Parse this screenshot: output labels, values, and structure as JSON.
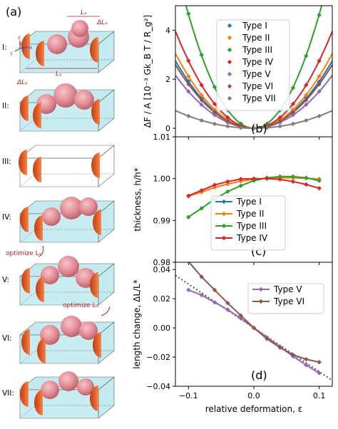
{
  "colors": {
    "Type I": "#1f77b4",
    "Type II": "#ff7f0e",
    "Type III": "#2ca02c",
    "Type IV": "#d62728",
    "Type V": "#9467bd",
    "Type VI": "#8c564b",
    "Type VII": "#7f7f7f",
    "box_fill": "#bfe9ef",
    "sphere": "#e88d96",
    "half_sphere": "#e0581f",
    "annotation": "#b22222"
  },
  "left_panel": {
    "letter": "(a)",
    "rows": [
      "I:",
      "II:",
      "III:",
      "IV:",
      "V:",
      "VI:",
      "VII:"
    ],
    "dim_labels": {
      "lx": "Lₓ",
      "dlx": "ΔLₓ",
      "ly": "Lᵧ",
      "dly": "ΔLᵧ"
    },
    "axis_triad": {
      "x": "x",
      "y": "y",
      "z": "z"
    },
    "optimize_y": "optimize Lᵧ",
    "optimize_x": "optimize Lₓ",
    "icons": [
      "box-icon"
    ]
  },
  "chart_data": [
    {
      "panel": "(b)",
      "type": "scatter",
      "ylabel": "ΔF / A [10⁻³ Gk_B T / R_g²]",
      "xlim": [
        -0.12,
        0.12
      ],
      "ylim": [
        -0.35,
        5.0
      ],
      "yticks": [
        0,
        2,
        4
      ],
      "ytick_labels": [
        "0",
        "2",
        "4"
      ],
      "legend_position": "upper-right",
      "x": [
        -0.1,
        -0.08,
        -0.06,
        -0.04,
        -0.02,
        0.0,
        0.02,
        0.04,
        0.06,
        0.08,
        0.1
      ],
      "series": [
        {
          "name": "Type I",
          "y": [
            1.92,
            1.21,
            0.69,
            0.32,
            0.09,
            0.0,
            0.08,
            0.33,
            0.72,
            1.25,
            1.9
          ]
        },
        {
          "name": "Type II",
          "y": [
            2.12,
            1.35,
            0.76,
            0.34,
            0.09,
            0.0,
            0.08,
            0.34,
            0.76,
            1.35,
            2.12
          ]
        },
        {
          "name": "Type III",
          "y": [
            4.67,
            2.99,
            1.68,
            0.75,
            0.19,
            0.0,
            0.18,
            0.73,
            1.65,
            2.95,
            4.62
          ]
        },
        {
          "name": "Type IV",
          "y": [
            2.75,
            1.76,
            0.99,
            0.44,
            0.11,
            0.0,
            0.11,
            0.44,
            0.99,
            1.76,
            2.75
          ]
        },
        {
          "name": "Type V",
          "y": [
            1.5,
            0.96,
            0.54,
            0.24,
            0.06,
            0.0,
            0.06,
            0.24,
            0.54,
            0.96,
            1.5
          ]
        },
        {
          "name": "Type VI",
          "y": [
            1.8,
            1.15,
            0.65,
            0.29,
            0.07,
            0.0,
            0.07,
            0.29,
            0.65,
            1.15,
            1.8
          ]
        },
        {
          "name": "Type VII",
          "y": [
            0.5,
            0.32,
            0.18,
            0.08,
            0.02,
            0.0,
            0.02,
            0.08,
            0.18,
            0.32,
            0.5
          ]
        }
      ]
    },
    {
      "panel": "(c)",
      "type": "line",
      "ylabel": "thickness, h/h*",
      "xlim": [
        -0.12,
        0.12
      ],
      "ylim": [
        0.98,
        1.01
      ],
      "yticks": [
        0.98,
        0.99,
        1.0,
        1.01
      ],
      "ytick_labels": [
        "0.98",
        "0.99",
        "1.00",
        "1.01"
      ],
      "legend_position": "lower-left",
      "x": [
        -0.1,
        -0.08,
        -0.06,
        -0.04,
        -0.02,
        0.0,
        0.02,
        0.04,
        0.06,
        0.08,
        0.1
      ],
      "series": [
        {
          "name": "Type I",
          "y": [
            0.9958,
            0.9968,
            0.9979,
            0.9987,
            0.9994,
            0.9998,
            1.0001,
            1.0002,
            1.0002,
            1.0001,
            0.9999
          ]
        },
        {
          "name": "Type II",
          "y": [
            0.9958,
            0.9968,
            0.9979,
            0.9987,
            0.9994,
            0.9998,
            1.0001,
            1.0002,
            1.0002,
            1.0001,
            0.9999
          ]
        },
        {
          "name": "Type III",
          "y": [
            0.9908,
            0.9929,
            0.9951,
            0.9969,
            0.9983,
            0.9995,
            1.0002,
            1.0005,
            1.0005,
            1.0002,
            0.9995
          ]
        },
        {
          "name": "Type IV",
          "y": [
            0.9959,
            0.9972,
            0.9985,
            0.9993,
            0.9999,
            1.0,
            1.0,
            0.9998,
            0.9993,
            0.9986,
            0.9977
          ]
        }
      ]
    },
    {
      "panel": "(d)",
      "type": "line",
      "ylabel": "length change, ΔL/L*",
      "xlabel": "relative deformation, ε",
      "xlim": [
        -0.12,
        0.12
      ],
      "ylim": [
        -0.04,
        0.045
      ],
      "xticks": [
        -0.1,
        0.0,
        0.1
      ],
      "xtick_labels": [
        "−0.1",
        "0.0",
        "0.1"
      ],
      "yticks": [
        -0.04,
        -0.02,
        0.0,
        0.02,
        0.04
      ],
      "ytick_labels": [
        "−0.04",
        "−0.02",
        "0.00",
        "0.02",
        "0.04"
      ],
      "legend_position": "upper-right",
      "x": [
        -0.1,
        -0.08,
        -0.06,
        -0.04,
        -0.02,
        0.0,
        0.02,
        0.04,
        0.06,
        0.08,
        0.1
      ],
      "series": [
        {
          "name": "Type V",
          "y": [
            0.026,
            0.0225,
            0.0175,
            0.0125,
            0.0065,
            0.0,
            -0.0065,
            -0.013,
            -0.0195,
            -0.0255,
            -0.031
          ]
        },
        {
          "name": "Type VI",
          "y": [
            0.0455,
            0.035,
            0.026,
            0.017,
            0.0085,
            0.0,
            -0.0075,
            -0.0135,
            -0.0185,
            -0.0215,
            -0.0235
          ]
        }
      ],
      "reference_line": {
        "style": "dotted",
        "x": [
          -0.12,
          0.12
        ],
        "y": [
          0.036,
          -0.036
        ]
      }
    }
  ],
  "panel_letters": {
    "b": "(b)",
    "c": "(c)",
    "d": "(d)"
  }
}
